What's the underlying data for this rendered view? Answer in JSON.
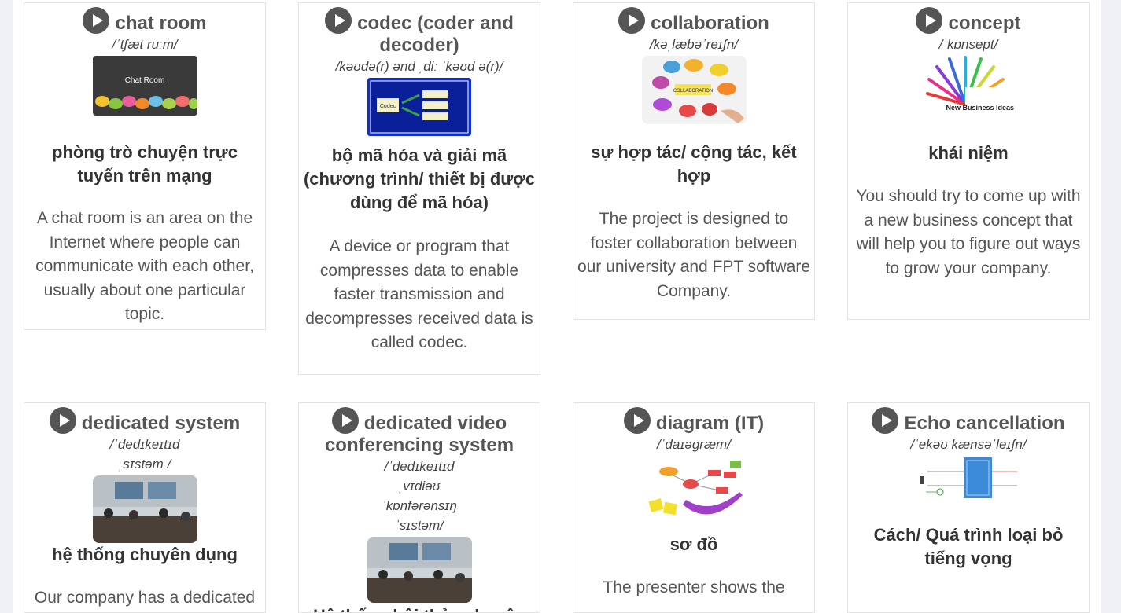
{
  "cards": [
    {
      "word": "chat room",
      "ipa": "/ˈtʃæt ruːm/",
      "image_caption": "Chat Room",
      "meaning": "phòng trò chuyện trực tuyến trên mạng",
      "example": "A chat room is an area on the Internet where people can communicate with each other, usually about one particular topic."
    },
    {
      "word": "codec (coder and decoder)",
      "ipa": "/kəʊdə(r) ənd ˌdiː ˈkəʊd ə(r)/",
      "image_caption": "Codec",
      "meaning": "bộ mã hóa và giải mã (chương trình/ thiết bị được dùng để mã hóa)",
      "example": "A device or program that compresses data to enable faster transmission and decompresses received data is called codec."
    },
    {
      "word": "collaboration",
      "ipa": "/kəˌlæbəˈreɪʃn/",
      "image_caption": "COLLABORATION",
      "meaning": "sự hợp tác/ cộng tác, kết hợp",
      "example": "The project is designed to foster collaboration between our university and FPT software Company."
    },
    {
      "word": "concept",
      "ipa": "/ˈkɒnsept/",
      "image_caption": "New Business Ideas",
      "meaning": "khái niệm",
      "example": "You should try to come up with a new business concept that will help you to figure out ways to grow your company."
    },
    {
      "word": "dedicated system",
      "ipa": "/ˈdedɪkeɪtɪd ˌsɪstəm /",
      "image_caption": "",
      "meaning": "hệ thống chuyên dụng",
      "example": "Our company has a dedicated"
    },
    {
      "word": "dedicated video conferencing system",
      "ipa": "/ˈdedɪkeɪtɪd ˌvɪdiəʊ ˈkɒnfərənsɪŋ ˈsɪstəm/",
      "image_caption": "",
      "meaning": "Hệ thống hội thảo chuyên",
      "example": ""
    },
    {
      "word": "diagram (IT)",
      "ipa": "/ˈdaɪəɡræm/",
      "image_caption": "",
      "meaning": "sơ đồ",
      "example": "The presenter shows the"
    },
    {
      "word": "Echo cancellation",
      "ipa": "/ˈekəʊ kænsəˈleɪʃn/",
      "image_caption": "",
      "meaning": "Cách/ Quá trình loại bỏ tiếng vọng",
      "example": ""
    }
  ],
  "colors": {
    "play_icon": "#555555",
    "card_border": "#e3e3e3",
    "page_bg": "#eef0f3"
  }
}
